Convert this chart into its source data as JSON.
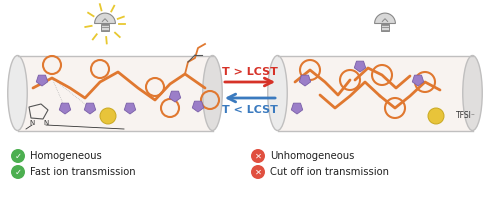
{
  "background_color": "#ffffff",
  "arrow_right_color": "#d63228",
  "arrow_left_color": "#3a7abf",
  "text_top": "T > LCST",
  "text_bottom": "T < LCST",
  "left_labels": [
    "Homogeneous",
    "Fast ion transmission"
  ],
  "right_labels": [
    "Unhomogeneous",
    "Cut off ion transmission"
  ],
  "left_check_color": "#4caf50",
  "right_x_color": "#e05040",
  "polymer_color": "#e07830",
  "ion_purple": "#9b7ec8",
  "ion_yellow": "#e8c43a",
  "cylinder_face": "#f8f3f0",
  "cylinder_cap_l": "#ebebeb",
  "cylinder_cap_r": "#e0dedd",
  "cylinder_edge": "#c0bfbf",
  "bulb_gray": "#888888",
  "bulb_body": "#d8d8d8",
  "bulb_glow": "#e8c830",
  "label_fontsize": 7.2,
  "fig_width": 5.0,
  "fig_height": 1.99
}
